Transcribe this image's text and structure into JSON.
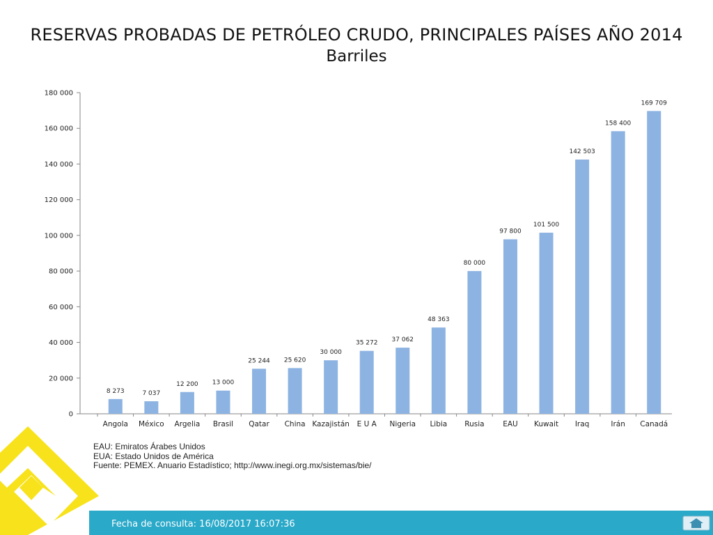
{
  "chart_data": {
    "type": "bar",
    "title": "RESERVAS PROBADAS DE PETRÓLEO CRUDO, PRINCIPALES PAÍSES AÑO 2014",
    "subtitle": "Barriles",
    "categories": [
      "Angola",
      "México",
      "Argelia",
      "Brasil",
      "Qatar",
      "China",
      "Kazajistán",
      "E U A",
      "Nigeria",
      "Libia",
      "Rusia",
      "EAU",
      "Kuwait",
      "Iraq",
      "Irán",
      "Canadá"
    ],
    "values": [
      8273,
      7037,
      12200,
      13000,
      25244,
      25620,
      30000,
      35272,
      37062,
      48363,
      80000,
      97800,
      101500,
      142503,
      158400,
      169709
    ],
    "value_labels": [
      "8 273",
      "7 037",
      "12 200",
      "13 000",
      "25 244",
      "25 620",
      "30 000",
      "35 272",
      "37 062",
      "48 363",
      "80 000",
      "97 800",
      "101 500",
      "142 503",
      "158 400",
      "169 709"
    ],
    "y_ticks": [
      0,
      20000,
      40000,
      60000,
      80000,
      100000,
      120000,
      140000,
      160000,
      180000
    ],
    "y_tick_labels": [
      "0",
      "20 000",
      "40 000",
      "60 000",
      "80 000",
      "100 000",
      "120 000",
      "140 000",
      "160 000",
      "180 000"
    ],
    "ylim": [
      0,
      180000
    ],
    "xlabel": "",
    "ylabel": "",
    "grid": false,
    "bar_color": "#8db3e2"
  },
  "notes": [
    "EAU: Emiratos Árabes Unidos",
    "EUA: Estado Unidos de América",
    "Fuente: PEMEX. Anuario Estadístico; http://www.inegi.org.mx/sistemas/bie/"
  ],
  "footer": {
    "text": "Fecha de consulta: 16/08/2017 16:07:36",
    "bar_color": "#2aa9c9",
    "home_icon": "home-icon"
  },
  "decoration": {
    "accent_color": "#f7e21b"
  }
}
